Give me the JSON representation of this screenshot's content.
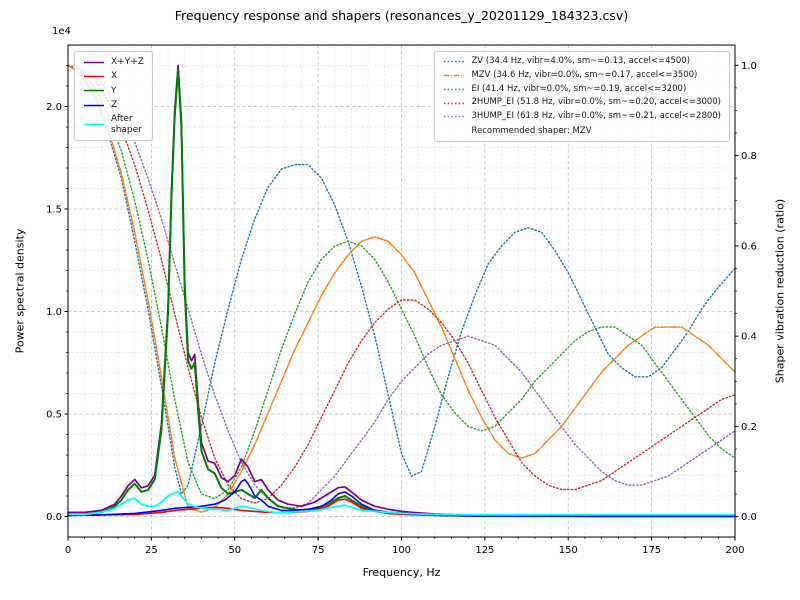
{
  "figure": {
    "title": "Frequency response and shapers (resonances_y_20201129_184323.csv)",
    "xlabel": "Frequency, Hz",
    "ylabel_left": "Power spectral density",
    "ylabel_right": "Shaper vibration reduction (ratio)",
    "offset_label": "1e4"
  },
  "chart_data": {
    "type": "line",
    "title": "Frequency response and shapers (resonances_y_20201129_184323.csv)",
    "xlabel": "Frequency, Hz",
    "ylabel": "Power spectral density",
    "ylabel_right": "Shaper vibration reduction (ratio)",
    "grid": {
      "on": true,
      "major_x_step": 25,
      "minor_x_step": 5,
      "major_y_step": 5000,
      "minor_y_step": 1000
    },
    "xlim": [
      0,
      200
    ],
    "x_ticks": [
      0,
      25,
      50,
      75,
      100,
      125,
      150,
      175,
      200
    ],
    "x_tick_labels": [
      "0",
      "25",
      "50",
      "75",
      "100",
      "125",
      "150",
      "175",
      "200"
    ],
    "ylim_left": [
      -1000,
      23000
    ],
    "y_ticks_left_values": [
      0,
      5000,
      10000,
      15000,
      20000
    ],
    "y_ticks_left_labels": [
      "0.0",
      "0.5",
      "1.0",
      "1.5",
      "2.0"
    ],
    "y_offset_label": "1e4",
    "ylim_right": [
      -0.045,
      1.045
    ],
    "y_ticks_right_values": [
      0,
      0.2,
      0.4,
      0.6,
      0.8,
      1.0
    ],
    "y_ticks_right_labels": [
      "0.0",
      "0.2",
      "0.4",
      "0.6",
      "0.8",
      "1.0"
    ],
    "legend_psd": [
      {
        "label": "X+Y+Z",
        "color": "#800080",
        "style": "solid"
      },
      {
        "label": "X",
        "color": "#ff0000",
        "style": "solid"
      },
      {
        "label": "Y",
        "color": "#008000",
        "style": "solid"
      },
      {
        "label": "Z",
        "color": "#0000ff",
        "style": "solid"
      },
      {
        "label": "After\nshaper",
        "color": "#00ffff",
        "style": "solid"
      }
    ],
    "legend_shapers": {
      "items": [
        {
          "label": "ZV (34.4 Hz, vibr=4.0%, sm~=0.13, accel<=4500)",
          "color": "#1f77b4",
          "style": "dotted"
        },
        {
          "label": "MZV (34.6 Hz, vibr=0.0%, sm~=0.17, accel<=3500)",
          "color": "#ff7f0e",
          "style": "dashdot"
        },
        {
          "label": "EI (41.4 Hz, vibr=0.0%, sm~=0.19, accel<=3200)",
          "color": "#2ca02c",
          "style": "dotted"
        },
        {
          "label": "2HUMP_EI (51.8 Hz, vibr=0.0%, sm~=0.20, accel<=3000)",
          "color": "#d62728",
          "style": "dotted"
        },
        {
          "label": "3HUMP_EI (61.8 Hz, vibr=0.0%, sm~=0.21, accel<=2800)",
          "color": "#9467bd",
          "style": "dotted"
        }
      ],
      "note": "Recommended shaper: MZV"
    },
    "recommended_shaper": "MZV",
    "series": [
      {
        "name": "ZV",
        "axis": "right",
        "color": "#1f77b4",
        "style": "dotted",
        "width": 1.4,
        "x": [
          0,
          4,
          8,
          12,
          16,
          20,
          24,
          28,
          32,
          34,
          36,
          40,
          44,
          48,
          52,
          56,
          60,
          64,
          68,
          72,
          76,
          80,
          84,
          88,
          92,
          96,
          100,
          103,
          106,
          110,
          114,
          118,
          122,
          126,
          130,
          134,
          138,
          142,
          146,
          150,
          154,
          158,
          162,
          166,
          170,
          174,
          178,
          182,
          186,
          190,
          194,
          200
        ],
        "y": [
          1.0,
          0.98,
          0.93,
          0.85,
          0.75,
          0.61,
          0.46,
          0.29,
          0.11,
          0.05,
          0.07,
          0.2,
          0.34,
          0.46,
          0.57,
          0.66,
          0.73,
          0.77,
          0.78,
          0.78,
          0.75,
          0.69,
          0.61,
          0.51,
          0.4,
          0.27,
          0.14,
          0.09,
          0.1,
          0.2,
          0.31,
          0.41,
          0.49,
          0.56,
          0.6,
          0.63,
          0.64,
          0.63,
          0.59,
          0.54,
          0.48,
          0.42,
          0.36,
          0.33,
          0.31,
          0.31,
          0.33,
          0.37,
          0.41,
          0.46,
          0.5,
          0.55
        ]
      },
      {
        "name": "MZV",
        "axis": "right",
        "color": "#ff7f0e",
        "style": "dashdot",
        "width": 1.5,
        "x": [
          0,
          4,
          8,
          12,
          16,
          20,
          24,
          28,
          32,
          36,
          40,
          44,
          48,
          52,
          56,
          60,
          64,
          68,
          72,
          76,
          80,
          84,
          88,
          92,
          96,
          100,
          104,
          108,
          112,
          116,
          120,
          124,
          128,
          132,
          136,
          140,
          144,
          148,
          152,
          156,
          160,
          164,
          168,
          172,
          176,
          180,
          184,
          188,
          192,
          196,
          200
        ],
        "y": [
          1.0,
          0.98,
          0.94,
          0.86,
          0.76,
          0.63,
          0.48,
          0.31,
          0.13,
          0.02,
          0.01,
          0.02,
          0.05,
          0.1,
          0.16,
          0.23,
          0.3,
          0.37,
          0.43,
          0.49,
          0.54,
          0.58,
          0.61,
          0.62,
          0.61,
          0.58,
          0.54,
          0.48,
          0.42,
          0.35,
          0.28,
          0.22,
          0.17,
          0.14,
          0.13,
          0.14,
          0.17,
          0.2,
          0.24,
          0.28,
          0.32,
          0.35,
          0.38,
          0.4,
          0.42,
          0.42,
          0.42,
          0.4,
          0.38,
          0.35,
          0.32
        ]
      },
      {
        "name": "EI",
        "axis": "right",
        "color": "#2ca02c",
        "style": "dotted",
        "width": 1.4,
        "x": [
          0,
          4,
          8,
          12,
          16,
          20,
          24,
          28,
          32,
          36,
          40,
          44,
          48,
          52,
          56,
          60,
          64,
          68,
          72,
          76,
          80,
          84,
          88,
          92,
          96,
          100,
          104,
          108,
          112,
          116,
          120,
          124,
          128,
          132,
          136,
          140,
          144,
          148,
          152,
          156,
          160,
          164,
          168,
          172,
          176,
          180,
          184,
          188,
          192,
          196,
          200
        ],
        "y": [
          1.0,
          0.99,
          0.95,
          0.89,
          0.81,
          0.7,
          0.57,
          0.42,
          0.26,
          0.12,
          0.05,
          0.04,
          0.06,
          0.11,
          0.19,
          0.28,
          0.37,
          0.45,
          0.52,
          0.57,
          0.6,
          0.61,
          0.6,
          0.57,
          0.52,
          0.46,
          0.4,
          0.33,
          0.27,
          0.23,
          0.2,
          0.19,
          0.2,
          0.23,
          0.26,
          0.3,
          0.33,
          0.36,
          0.39,
          0.41,
          0.42,
          0.42,
          0.4,
          0.38,
          0.34,
          0.3,
          0.26,
          0.22,
          0.18,
          0.15,
          0.13
        ]
      },
      {
        "name": "2HUMP_EI",
        "axis": "right",
        "color": "#d62728",
        "style": "dotted",
        "width": 1.4,
        "x": [
          0,
          4,
          8,
          12,
          16,
          20,
          24,
          28,
          32,
          36,
          40,
          44,
          48,
          52,
          56,
          60,
          64,
          68,
          72,
          76,
          80,
          84,
          88,
          92,
          96,
          100,
          104,
          108,
          112,
          116,
          120,
          124,
          128,
          132,
          136,
          140,
          144,
          148,
          152,
          156,
          160,
          164,
          168,
          172,
          176,
          180,
          184,
          188,
          192,
          196,
          200
        ],
        "y": [
          1.0,
          0.99,
          0.97,
          0.92,
          0.86,
          0.78,
          0.68,
          0.57,
          0.45,
          0.33,
          0.22,
          0.13,
          0.07,
          0.04,
          0.03,
          0.04,
          0.07,
          0.11,
          0.16,
          0.22,
          0.28,
          0.34,
          0.39,
          0.43,
          0.46,
          0.48,
          0.48,
          0.46,
          0.43,
          0.39,
          0.34,
          0.28,
          0.22,
          0.17,
          0.12,
          0.09,
          0.07,
          0.06,
          0.06,
          0.07,
          0.08,
          0.1,
          0.12,
          0.14,
          0.16,
          0.18,
          0.2,
          0.22,
          0.24,
          0.26,
          0.27
        ]
      },
      {
        "name": "3HUMP_EI",
        "axis": "right",
        "color": "#9467bd",
        "style": "dotted",
        "width": 1.4,
        "x": [
          0,
          4,
          8,
          12,
          16,
          20,
          24,
          28,
          32,
          36,
          40,
          44,
          48,
          52,
          56,
          60,
          64,
          68,
          72,
          76,
          80,
          84,
          88,
          92,
          96,
          100,
          104,
          108,
          112,
          116,
          120,
          124,
          128,
          132,
          136,
          140,
          144,
          148,
          152,
          156,
          160,
          164,
          168,
          172,
          176,
          180,
          184,
          188,
          192,
          196,
          200
        ],
        "y": [
          1.0,
          0.99,
          0.98,
          0.94,
          0.89,
          0.83,
          0.75,
          0.66,
          0.56,
          0.46,
          0.36,
          0.27,
          0.19,
          0.12,
          0.07,
          0.04,
          0.02,
          0.02,
          0.03,
          0.06,
          0.09,
          0.13,
          0.17,
          0.21,
          0.26,
          0.3,
          0.33,
          0.36,
          0.38,
          0.39,
          0.4,
          0.39,
          0.38,
          0.35,
          0.32,
          0.28,
          0.24,
          0.2,
          0.16,
          0.13,
          0.1,
          0.08,
          0.07,
          0.07,
          0.08,
          0.09,
          0.11,
          0.13,
          0.15,
          0.17,
          0.19
        ]
      },
      {
        "name": "X+Y+Z",
        "axis": "left",
        "color": "#800080",
        "style": "solid",
        "width": 1.7,
        "x": [
          0,
          5,
          10,
          14,
          16,
          18,
          20,
          22,
          24,
          26,
          28,
          30,
          31,
          32,
          33,
          34,
          35,
          36,
          37,
          38,
          39,
          40,
          42,
          44,
          46,
          48,
          50,
          52,
          54,
          56,
          58,
          60,
          63,
          66,
          70,
          74,
          78,
          81,
          83,
          85,
          88,
          92,
          96,
          100,
          105,
          110,
          120,
          140,
          160,
          180,
          200
        ],
        "y": [
          200,
          200,
          300,
          600,
          1000,
          1500,
          1800,
          1400,
          1500,
          2000,
          4500,
          10300,
          15800,
          19800,
          22000,
          19300,
          11400,
          8000,
          7600,
          7900,
          5600,
          3600,
          2700,
          2600,
          1900,
          1700,
          2000,
          2800,
          2400,
          1700,
          1800,
          1300,
          800,
          600,
          500,
          700,
          1100,
          1400,
          1450,
          1200,
          800,
          500,
          350,
          250,
          180,
          120,
          60,
          30,
          20,
          20,
          20
        ]
      },
      {
        "name": "X",
        "axis": "left",
        "color": "#ff0000",
        "style": "solid",
        "width": 1.6,
        "x": [
          0,
          10,
          20,
          28,
          32,
          36,
          40,
          44,
          48,
          52,
          56,
          60,
          66,
          72,
          78,
          81,
          83,
          85,
          88,
          92,
          96,
          100,
          110,
          120,
          140,
          160,
          180,
          200
        ],
        "y": [
          50,
          80,
          100,
          200,
          300,
          350,
          400,
          450,
          400,
          300,
          250,
          200,
          200,
          250,
          500,
          800,
          850,
          700,
          400,
          250,
          150,
          100,
          60,
          30,
          20,
          10,
          10,
          10
        ]
      },
      {
        "name": "Y",
        "axis": "left",
        "color": "#008000",
        "style": "solid",
        "width": 2,
        "x": [
          0,
          5,
          10,
          14,
          16,
          18,
          20,
          22,
          24,
          26,
          28,
          30,
          31,
          32,
          33,
          34,
          35,
          36,
          37,
          38,
          39,
          40,
          42,
          44,
          46,
          48,
          50,
          52,
          54,
          56,
          58,
          60,
          63,
          66,
          70,
          74,
          78,
          81,
          83,
          85,
          88,
          92,
          96,
          100,
          105,
          110,
          120,
          140,
          160,
          180,
          200
        ],
        "y": [
          100,
          100,
          200,
          500,
          800,
          1300,
          1600,
          1200,
          1300,
          1800,
          4200,
          10000,
          15500,
          19500,
          21800,
          19000,
          11000,
          7600,
          7200,
          7500,
          5200,
          3200,
          2300,
          2100,
          1400,
          1100,
          1200,
          1300,
          1100,
          900,
          1300,
          900,
          500,
          400,
          300,
          400,
          600,
          900,
          1000,
          800,
          500,
          300,
          200,
          150,
          100,
          80,
          40,
          20,
          10,
          10,
          10
        ]
      },
      {
        "name": "Z",
        "axis": "left",
        "color": "#0000ff",
        "style": "solid",
        "width": 1.6,
        "x": [
          0,
          10,
          20,
          28,
          32,
          36,
          40,
          44,
          47,
          50,
          52,
          53,
          54,
          56,
          58,
          60,
          64,
          68,
          72,
          76,
          79,
          81,
          83,
          85,
          88,
          92,
          96,
          100,
          105,
          110,
          120,
          140,
          160,
          180,
          200
        ],
        "y": [
          50,
          80,
          150,
          300,
          400,
          450,
          500,
          600,
          800,
          1200,
          1700,
          1800,
          1600,
          1000,
          800,
          500,
          300,
          300,
          350,
          500,
          800,
          1100,
          1200,
          1000,
          600,
          300,
          200,
          150,
          100,
          60,
          30,
          20,
          10,
          10,
          10
        ]
      },
      {
        "name": "After shaper",
        "axis": "left",
        "color": "#00ffff",
        "style": "solid",
        "width": 1.8,
        "x": [
          0,
          5,
          10,
          14,
          16,
          18,
          20,
          22,
          24,
          26,
          28,
          30,
          32,
          33,
          34,
          36,
          38,
          40,
          44,
          48,
          52,
          54,
          58,
          62,
          66,
          70,
          75,
          79,
          81,
          83,
          85,
          88,
          92,
          96,
          100,
          110,
          120,
          140,
          160,
          180,
          200
        ],
        "y": [
          100,
          100,
          200,
          400,
          600,
          800,
          900,
          600,
          500,
          500,
          700,
          1000,
          1150,
          1200,
          1000,
          600,
          500,
          400,
          350,
          300,
          500,
          450,
          300,
          200,
          200,
          250,
          300,
          450,
          500,
          550,
          450,
          300,
          250,
          200,
          150,
          100,
          80,
          80,
          80,
          80,
          80
        ]
      }
    ]
  }
}
